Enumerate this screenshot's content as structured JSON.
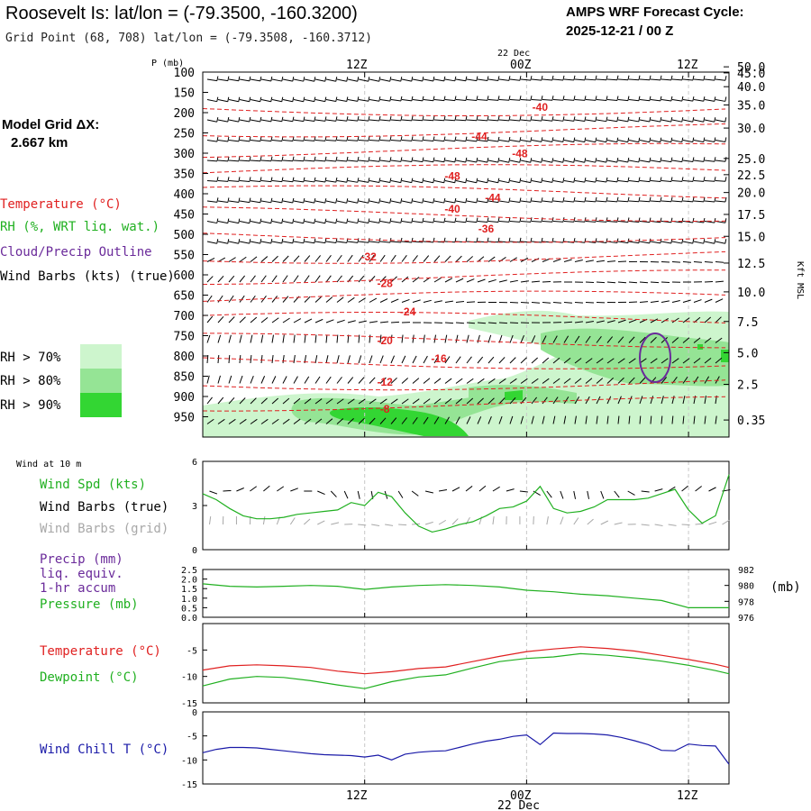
{
  "header": {
    "title": "Roosevelt Is:  lat/lon = (-79.3500, -160.3200)",
    "subtitle": "Grid Point (68, 708) lat/lon = (-79.3508, -160.3712)",
    "cycle_label": "AMPS WRF Forecast Cycle:",
    "cycle_value": "2025-12-21 / 00  Z"
  },
  "sidebar": {
    "grid_label": "Model Grid ΔX:",
    "grid_value": "2.667 km",
    "legend": [
      {
        "text": "Temperature (°C)",
        "color": "#e02020"
      },
      {
        "text": "RH (%, WRT liq. wat.)",
        "color": "#20b020"
      },
      {
        "text": "Cloud/Precip Outline",
        "color": "#6a2a9a"
      },
      {
        "text": "Wind Barbs (kts) (true)",
        "color": "#000000"
      }
    ],
    "rh_legend": [
      {
        "text": "RH > 70%",
        "color": "#cdf5cd"
      },
      {
        "text": "RH > 80%",
        "color": "#95e495"
      },
      {
        "text": "RH > 90%",
        "color": "#33d633"
      }
    ]
  },
  "time_axis": {
    "date_label": "22 Dec",
    "ticks": [
      "12Z",
      "00Z",
      "12Z"
    ]
  },
  "colors": {
    "temperature": "#e02020",
    "dewpoint": "#20b020",
    "wind_speed": "#20b020",
    "pressure": "#20b020",
    "wind_chill": "#1a1aa8",
    "cloud_outline": "#6a2a9a",
    "grid_barbs": "#a8a8a8",
    "rh70": "#cdf5cd",
    "rh80": "#95e495",
    "rh90": "#33d633"
  },
  "chart_data": [
    {
      "type": "contour",
      "name": "cross-section",
      "ylabel": "P (mb)",
      "ylabel_right": "Kft MSL",
      "pressure_levels": [
        100,
        150,
        200,
        250,
        300,
        350,
        400,
        450,
        500,
        550,
        600,
        650,
        700,
        750,
        800,
        850,
        900,
        950
      ],
      "height_kft": [
        "50.0",
        "45.0",
        "40.0",
        "35.0",
        "30.0",
        "25.0",
        "22.5",
        "20.0",
        "17.5",
        "15.0",
        "12.5",
        "10.0",
        "7.5",
        "5.0",
        "2.5",
        "0.35"
      ],
      "height_kft_pressure": [
        87,
        102,
        136,
        181,
        238,
        313,
        353,
        397,
        451,
        505,
        571,
        642,
        715,
        792,
        870,
        958
      ],
      "time_range_hours": [
        0,
        39
      ],
      "pressure_range": [
        100,
        1000
      ],
      "temperature_contours": [
        {
          "label": "-40",
          "p": 196,
          "t": 25.0
        },
        {
          "label": "-44",
          "p": 268,
          "t": 20.5
        },
        {
          "label": "-48",
          "p": 310,
          "t": 23.5
        },
        {
          "label": "-48",
          "p": 366,
          "t": 18.5
        },
        {
          "label": "-44",
          "p": 419,
          "t": 21.5
        },
        {
          "label": "-40",
          "p": 447,
          "t": 18.5
        },
        {
          "label": "-36",
          "p": 496,
          "t": 21.0
        },
        {
          "label": "-32",
          "p": 564,
          "t": 12.3
        },
        {
          "label": "-28",
          "p": 630,
          "t": 13.5
        },
        {
          "label": "-24",
          "p": 700,
          "t": 15.2
        },
        {
          "label": "-20",
          "p": 771,
          "t": 13.5
        },
        {
          "label": "-16",
          "p": 815,
          "t": 17.5
        },
        {
          "label": "-12",
          "p": 873,
          "t": 13.5
        },
        {
          "label": "-8",
          "p": 940,
          "t": 13.5
        }
      ],
      "rh_shading": "RH > 70% / 80% / 90% in lower troposphere (900-1000 mb) and 700-900 mb after 00Z"
    },
    {
      "type": "line",
      "name": "wind-at-10m",
      "title": "Wind at 10 m",
      "ylim": [
        0,
        6
      ],
      "yticks": [
        "0",
        "3",
        "6"
      ],
      "series": [
        {
          "name": "Wind Spd (kts)",
          "color": "#20b020",
          "x": [
            0,
            1,
            2,
            3,
            4,
            5,
            6,
            7,
            8,
            9,
            10,
            11,
            12,
            13,
            14,
            15,
            16,
            17,
            18,
            19,
            20,
            21,
            22,
            23,
            24,
            25,
            26,
            27,
            28,
            29,
            30,
            31,
            32,
            33,
            34,
            35,
            36,
            37,
            38,
            39
          ],
          "values": [
            3.8,
            3.4,
            2.8,
            2.3,
            2.1,
            2.1,
            2.2,
            2.4,
            2.5,
            2.6,
            2.7,
            3.2,
            3.0,
            3.9,
            3.6,
            2.5,
            1.6,
            1.2,
            1.4,
            1.7,
            1.9,
            2.3,
            2.8,
            2.9,
            3.3,
            4.3,
            2.8,
            2.5,
            2.6,
            2.9,
            3.4,
            3.4,
            3.4,
            3.5,
            3.8,
            4.1,
            2.7,
            1.8,
            2.3,
            5.1
          ]
        }
      ],
      "legend": [
        "Wind Spd (kts)",
        "Wind Barbs (true)",
        "Wind Barbs (grid)"
      ]
    },
    {
      "type": "line",
      "name": "precip-pressure",
      "ylim_left": [
        0,
        2.5
      ],
      "yticks_left": [
        "0.0",
        "0.5",
        "1.0",
        "1.5",
        "2.0",
        "2.5"
      ],
      "ylim_right": [
        976,
        982
      ],
      "yticks_right": [
        "976",
        "978",
        "980",
        "982"
      ],
      "ylabel_right": "(mb)",
      "legend": [
        "Precip (mm)",
        "liq. equiv.",
        "1-hr accum",
        "Pressure (mb)"
      ],
      "series": [
        {
          "name": "Pressure (mb)",
          "color": "#20b020",
          "x": [
            0,
            2,
            4,
            6,
            8,
            10,
            12,
            14,
            16,
            18,
            20,
            22,
            24,
            26,
            28,
            30,
            32,
            34,
            36,
            38,
            39
          ],
          "values": [
            980.2,
            979.9,
            979.8,
            979.9,
            980.0,
            979.9,
            979.5,
            979.8,
            980.0,
            980.1,
            980.0,
            979.8,
            979.4,
            979.2,
            978.9,
            978.7,
            978.4,
            978.1,
            977.2,
            977.2,
            977.2
          ]
        },
        {
          "name": "Precip (mm)",
          "color": "#6a2a9a",
          "x": [],
          "values": []
        }
      ]
    },
    {
      "type": "line",
      "name": "temperature-dewpoint",
      "ylim": [
        -15,
        0
      ],
      "yticks": [
        "-5",
        "-10",
        "-15"
      ],
      "series": [
        {
          "name": "Temperature (°C)",
          "color": "#e02020",
          "x": [
            0,
            2,
            4,
            6,
            8,
            10,
            12,
            14,
            16,
            18,
            20,
            22,
            24,
            26,
            28,
            30,
            32,
            34,
            36,
            38,
            39
          ],
          "values": [
            -8.8,
            -8.0,
            -7.8,
            -8.0,
            -8.3,
            -9.0,
            -9.5,
            -9.1,
            -8.5,
            -8.2,
            -7.2,
            -6.2,
            -5.3,
            -4.8,
            -4.4,
            -4.7,
            -5.2,
            -6.0,
            -6.8,
            -7.7,
            -8.3
          ]
        },
        {
          "name": "Dewpoint (°C)",
          "color": "#20b020",
          "x": [
            0,
            2,
            4,
            6,
            8,
            10,
            12,
            14,
            16,
            18,
            20,
            22,
            24,
            26,
            28,
            30,
            32,
            34,
            36,
            38,
            39
          ],
          "values": [
            -11.8,
            -10.5,
            -10.0,
            -10.2,
            -10.8,
            -11.6,
            -12.3,
            -11.0,
            -10.1,
            -9.7,
            -8.4,
            -7.2,
            -6.6,
            -6.3,
            -5.7,
            -6.0,
            -6.5,
            -7.1,
            -7.9,
            -8.9,
            -9.5
          ]
        }
      ]
    },
    {
      "type": "line",
      "name": "wind-chill",
      "ylim": [
        -15,
        0
      ],
      "yticks": [
        "0",
        "-5",
        "-10",
        "-15"
      ],
      "xlabel": "22 Dec",
      "series": [
        {
          "name": "Wind Chill T (°C)",
          "color": "#1a1aa8",
          "x": [
            0,
            1,
            2,
            3,
            4,
            5,
            6,
            7,
            8,
            9,
            10,
            11,
            12,
            13,
            14,
            15,
            16,
            17,
            18,
            19,
            20,
            21,
            22,
            23,
            24,
            25,
            26,
            27,
            28,
            29,
            30,
            31,
            32,
            33,
            34,
            35,
            36,
            37,
            38,
            39
          ],
          "values": [
            -8.5,
            -7.8,
            -7.4,
            -7.4,
            -7.5,
            -7.8,
            -8.1,
            -8.4,
            -8.7,
            -8.9,
            -9.0,
            -9.1,
            -9.4,
            -9.0,
            -10.0,
            -8.8,
            -8.4,
            -8.2,
            -8.1,
            -7.4,
            -6.7,
            -6.1,
            -5.7,
            -5.1,
            -4.8,
            -6.8,
            -4.4,
            -4.5,
            -4.5,
            -4.6,
            -4.8,
            -5.3,
            -6.0,
            -6.8,
            -8.0,
            -8.1,
            -6.7,
            -7.0,
            -7.1,
            -10.9
          ]
        }
      ]
    }
  ]
}
